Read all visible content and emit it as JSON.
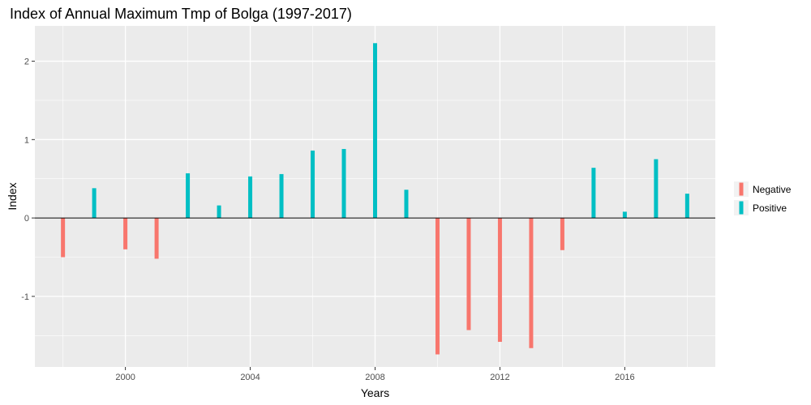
{
  "chart_data": {
    "type": "bar",
    "title": "Index of Annual Maximum Tmp of Bolga (1997-2017)",
    "xlabel": "Years",
    "ylabel": "Index",
    "x": [
      1998,
      1999,
      2000,
      2001,
      2002,
      2003,
      2004,
      2005,
      2006,
      2007,
      2008,
      2009,
      2010,
      2011,
      2012,
      2013,
      2014,
      2015,
      2016,
      2017,
      2018
    ],
    "values": [
      -0.5,
      0.38,
      -0.4,
      -0.52,
      0.57,
      0.16,
      0.53,
      0.56,
      0.86,
      0.88,
      2.23,
      0.36,
      -1.74,
      -1.43,
      -1.58,
      -1.66,
      -0.41,
      0.64,
      0.08,
      0.75,
      0.31
    ],
    "xlim": [
      1997.1,
      2018.9
    ],
    "ylim": [
      -1.9,
      2.45
    ],
    "xticks": [
      2000,
      2004,
      2008,
      2012,
      2016
    ],
    "yticks": [
      -1,
      0,
      1,
      2
    ],
    "legend": {
      "position": "right",
      "entries": [
        {
          "name": "Negative",
          "color": "#F8766D"
        },
        {
          "name": "Positive",
          "color": "#00BFC4"
        }
      ]
    },
    "colors": {
      "panel": "#EBEBEB",
      "grid": "#FFFFFF",
      "negative": "#F8766D",
      "positive": "#00BFC4",
      "zero_line": "#000000"
    }
  }
}
